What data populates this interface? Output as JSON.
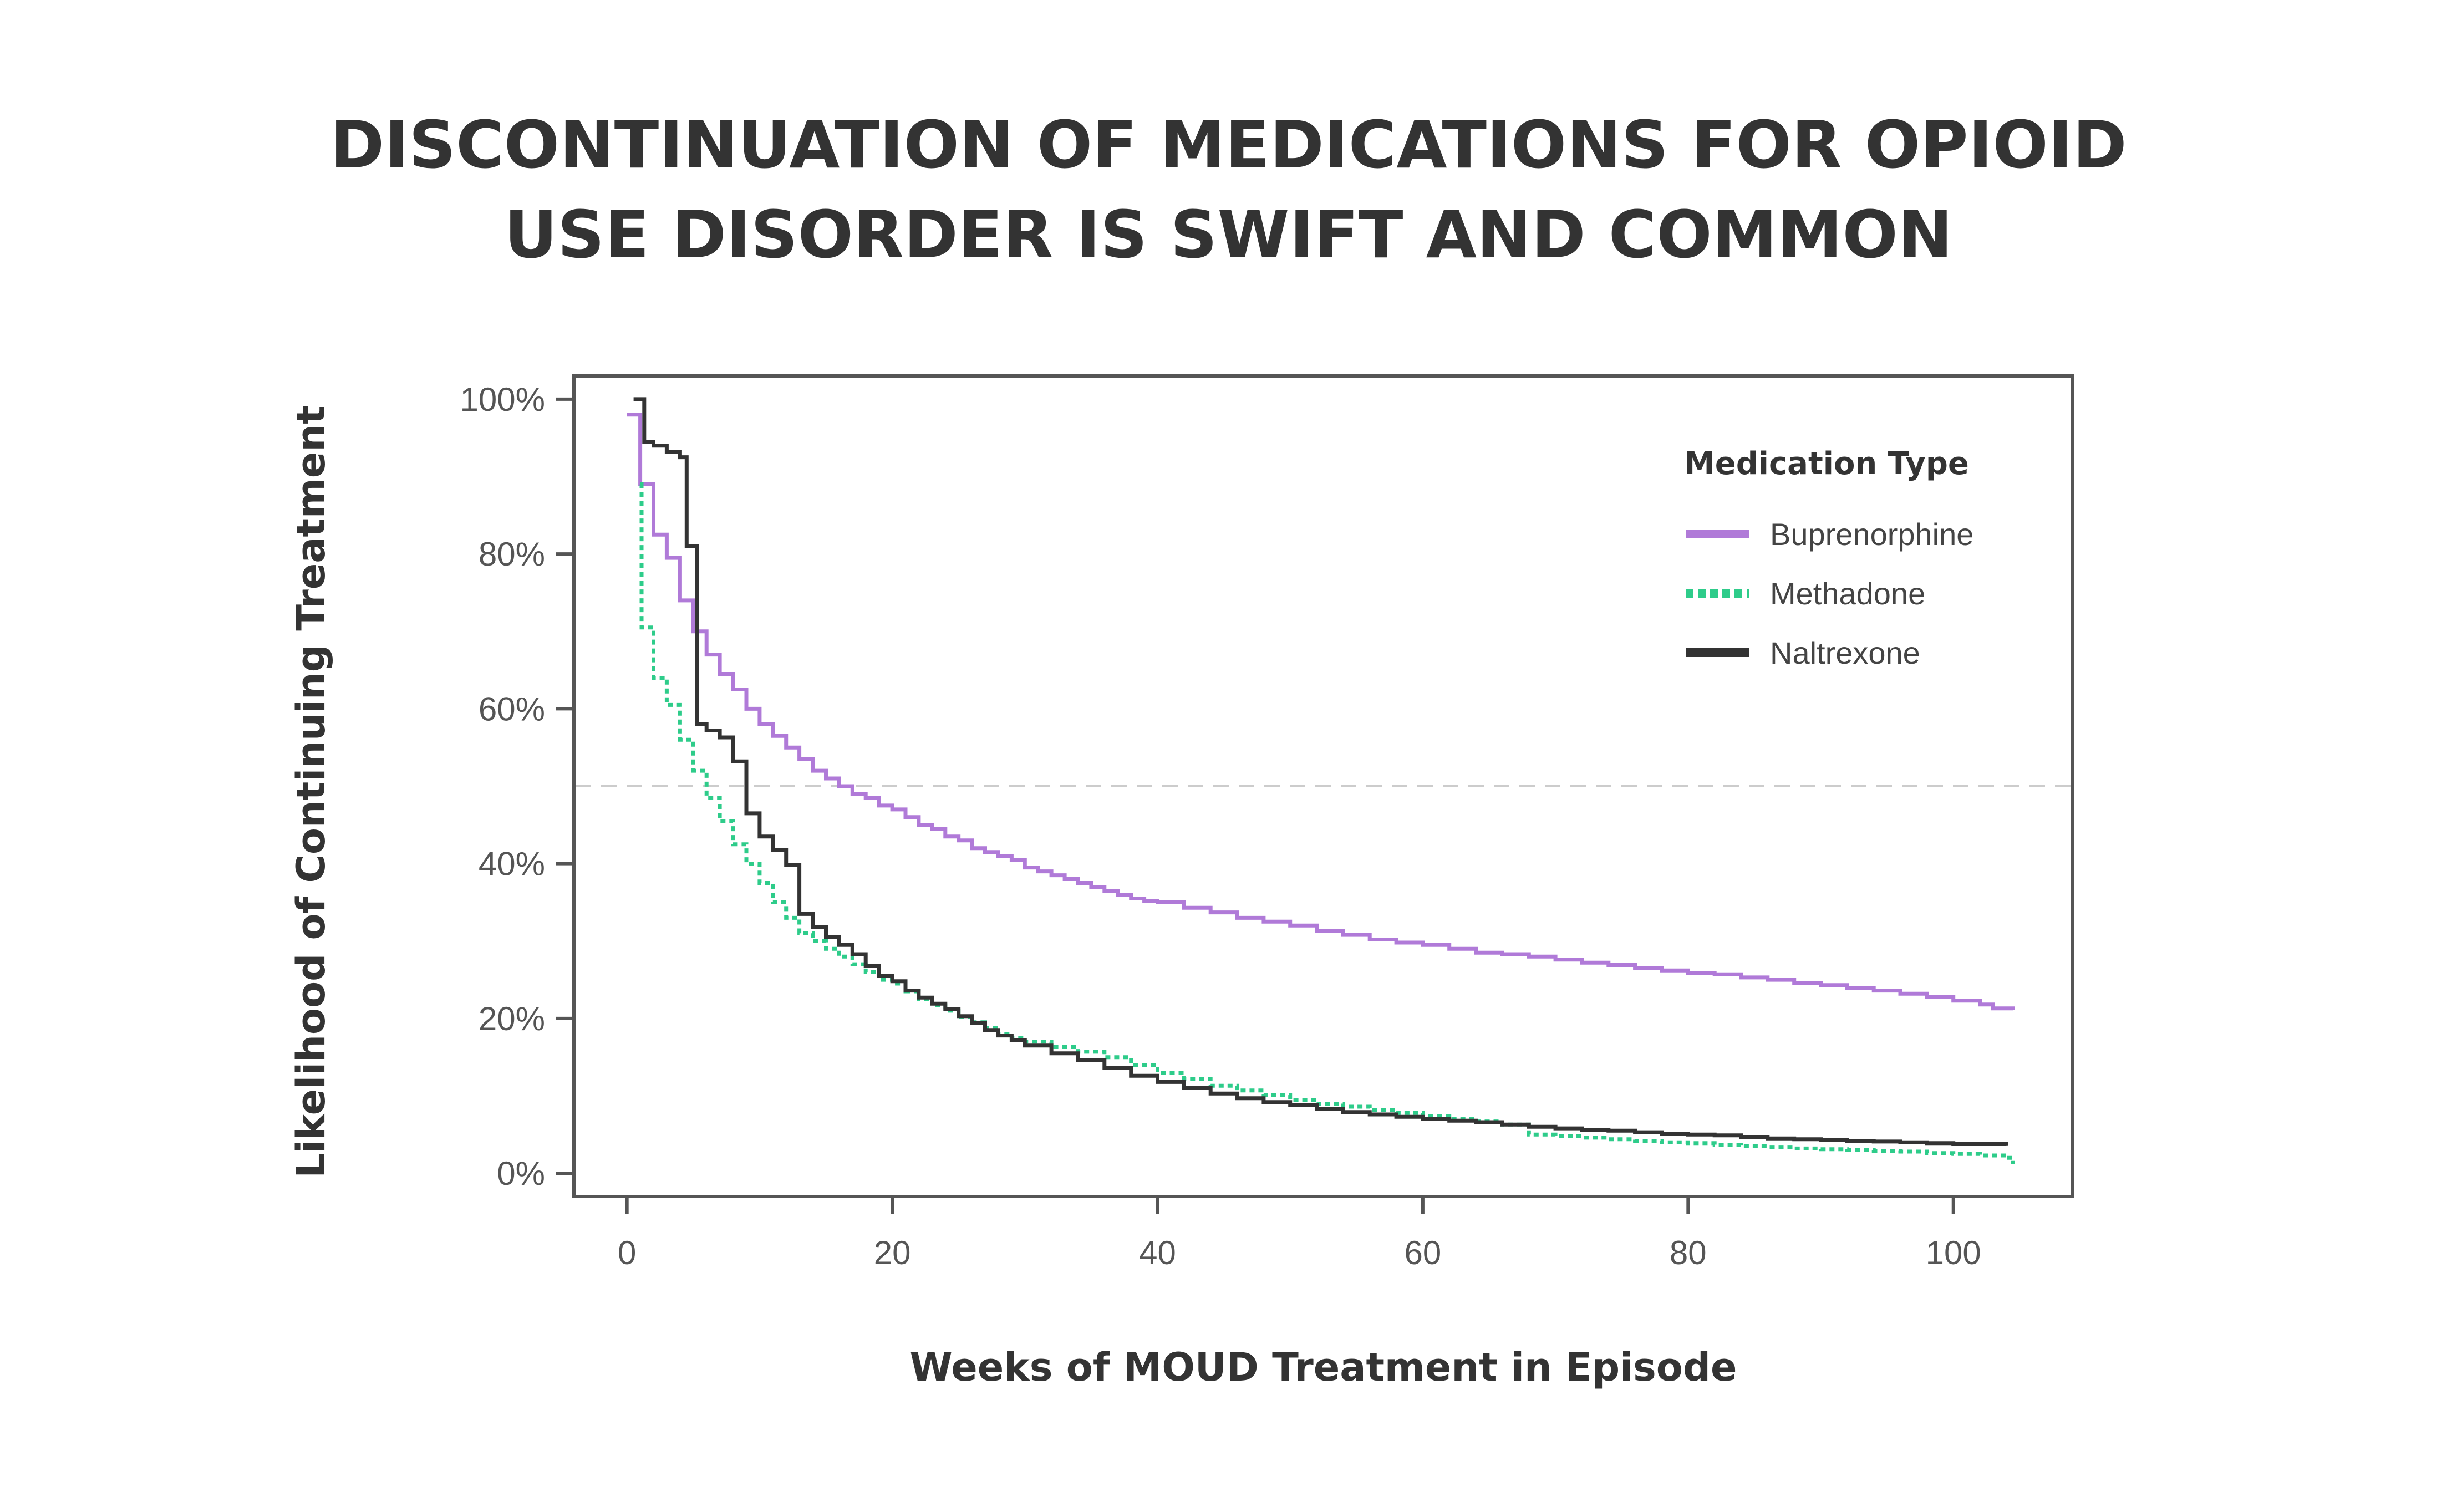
{
  "header": {
    "title_line1": "DISCONTINUATION OF MEDICATIONS FOR OPIOID",
    "title_line2": "USE DISORDER IS SWIFT AND COMMON"
  },
  "chart_data": {
    "type": "line",
    "step": true,
    "title": "DISCONTINUATION OF MEDICATIONS FOR OPIOID USE DISORDER IS SWIFT AND COMMON",
    "xlabel": "Weeks of MOUD Treatment in Episode",
    "ylabel": "Likelihood of Continuing Treatment",
    "xlim": [
      -4,
      109
    ],
    "ylim": [
      -3,
      103
    ],
    "x_ticks": [
      0,
      20,
      40,
      60,
      80,
      100
    ],
    "y_ticks": [
      0,
      20,
      40,
      60,
      80,
      100
    ],
    "y_tick_labels": [
      "0%",
      "20%",
      "40%",
      "60%",
      "80%",
      "100%"
    ],
    "reference_line": {
      "y": 50,
      "style": "dashed",
      "color": "#cccccc"
    },
    "grid": false,
    "legend": {
      "title": "Medication Type",
      "position": "top-right"
    },
    "series": [
      {
        "name": "Buprenorphine",
        "color": "#b07ad8",
        "dash": "solid",
        "points": [
          [
            0,
            98
          ],
          [
            1,
            89
          ],
          [
            2,
            82.5
          ],
          [
            3,
            79.5
          ],
          [
            4,
            74
          ],
          [
            5,
            70
          ],
          [
            6,
            67
          ],
          [
            7,
            64.5
          ],
          [
            8,
            62.5
          ],
          [
            9,
            60
          ],
          [
            10,
            58
          ],
          [
            11,
            56.5
          ],
          [
            12,
            55
          ],
          [
            13,
            53.5
          ],
          [
            14,
            52
          ],
          [
            15,
            51
          ],
          [
            16,
            50
          ],
          [
            17,
            49
          ],
          [
            18,
            48.5
          ],
          [
            19,
            47.5
          ],
          [
            20,
            47
          ],
          [
            21,
            46
          ],
          [
            22,
            45
          ],
          [
            23,
            44.5
          ],
          [
            24,
            43.5
          ],
          [
            25,
            43
          ],
          [
            26,
            42
          ],
          [
            27,
            41.5
          ],
          [
            28,
            41
          ],
          [
            29,
            40.5
          ],
          [
            30,
            39.5
          ],
          [
            31,
            39
          ],
          [
            32,
            38.5
          ],
          [
            33,
            38
          ],
          [
            34,
            37.5
          ],
          [
            35,
            37
          ],
          [
            36,
            36.5
          ],
          [
            37,
            36
          ],
          [
            38,
            35.5
          ],
          [
            39,
            35.2
          ],
          [
            40,
            35
          ],
          [
            42,
            34.3
          ],
          [
            44,
            33.7
          ],
          [
            46,
            33
          ],
          [
            48,
            32.5
          ],
          [
            50,
            32
          ],
          [
            52,
            31.3
          ],
          [
            54,
            30.8
          ],
          [
            56,
            30.2
          ],
          [
            58,
            29.8
          ],
          [
            60,
            29.5
          ],
          [
            62,
            29
          ],
          [
            64,
            28.5
          ],
          [
            66,
            28.3
          ],
          [
            68,
            28
          ],
          [
            70,
            27.6
          ],
          [
            72,
            27.2
          ],
          [
            74,
            26.9
          ],
          [
            76,
            26.5
          ],
          [
            78,
            26.2
          ],
          [
            80,
            25.9
          ],
          [
            82,
            25.7
          ],
          [
            84,
            25.3
          ],
          [
            86,
            25
          ],
          [
            88,
            24.6
          ],
          [
            90,
            24.3
          ],
          [
            92,
            23.9
          ],
          [
            94,
            23.6
          ],
          [
            96,
            23.2
          ],
          [
            98,
            22.8
          ],
          [
            100,
            22.3
          ],
          [
            102,
            21.8
          ],
          [
            103,
            21.3
          ],
          [
            104.5,
            21.1
          ]
        ]
      },
      {
        "name": "Methadone",
        "color": "#2ecc8a",
        "dash": "dotted",
        "points": [
          [
            1,
            89
          ],
          [
            1.1,
            70.5
          ],
          [
            2,
            64
          ],
          [
            3,
            60.5
          ],
          [
            4,
            56
          ],
          [
            5,
            52
          ],
          [
            6,
            48.5
          ],
          [
            7,
            45.5
          ],
          [
            8,
            42.5
          ],
          [
            9,
            40
          ],
          [
            10,
            37.5
          ],
          [
            11,
            35
          ],
          [
            12,
            33
          ],
          [
            13,
            31
          ],
          [
            14,
            30
          ],
          [
            15,
            29
          ],
          [
            16,
            28
          ],
          [
            17,
            27
          ],
          [
            18,
            26
          ],
          [
            19,
            25
          ],
          [
            20,
            24.5
          ],
          [
            21,
            23.5
          ],
          [
            22,
            22.5
          ],
          [
            23,
            21.7
          ],
          [
            24,
            21
          ],
          [
            25,
            20.2
          ],
          [
            26,
            19.5
          ],
          [
            27,
            18.8
          ],
          [
            28,
            18
          ],
          [
            29,
            17.5
          ],
          [
            30,
            17
          ],
          [
            32,
            16.3
          ],
          [
            34,
            15.7
          ],
          [
            36,
            15
          ],
          [
            38,
            14
          ],
          [
            40,
            13
          ],
          [
            42,
            12.2
          ],
          [
            44,
            11.3
          ],
          [
            46,
            10.7
          ],
          [
            48,
            10.1
          ],
          [
            50,
            9.5
          ],
          [
            52,
            9
          ],
          [
            54,
            8.6
          ],
          [
            56,
            8.2
          ],
          [
            58,
            7.8
          ],
          [
            60,
            7.4
          ],
          [
            62,
            7
          ],
          [
            64,
            6.7
          ],
          [
            66,
            6.3
          ],
          [
            68,
            5
          ],
          [
            70,
            4.8
          ],
          [
            72,
            4.6
          ],
          [
            74,
            4.4
          ],
          [
            76,
            4.2
          ],
          [
            78,
            4
          ],
          [
            80,
            3.9
          ],
          [
            82,
            3.7
          ],
          [
            84,
            3.5
          ],
          [
            86,
            3.4
          ],
          [
            88,
            3.2
          ],
          [
            90,
            3.1
          ],
          [
            92,
            3
          ],
          [
            94,
            2.9
          ],
          [
            96,
            2.8
          ],
          [
            98,
            2.6
          ],
          [
            100,
            2.5
          ],
          [
            102,
            2.3
          ],
          [
            104,
            2
          ],
          [
            104.5,
            1.2
          ]
        ]
      },
      {
        "name": "Naltrexone",
        "color": "#333333",
        "dash": "solid",
        "points": [
          [
            0.5,
            100
          ],
          [
            1.3,
            94.5
          ],
          [
            2,
            94
          ],
          [
            3,
            93.2
          ],
          [
            4,
            92.5
          ],
          [
            4.5,
            81
          ],
          [
            5.3,
            58
          ],
          [
            6,
            57.2
          ],
          [
            7,
            56.3
          ],
          [
            8,
            53.2
          ],
          [
            9,
            46.5
          ],
          [
            10,
            43.5
          ],
          [
            11,
            41.8
          ],
          [
            12,
            39.8
          ],
          [
            13,
            33.5
          ],
          [
            14,
            31.8
          ],
          [
            15,
            30.5
          ],
          [
            16,
            29.5
          ],
          [
            17,
            28.3
          ],
          [
            18,
            26.8
          ],
          [
            19,
            25.5
          ],
          [
            20,
            24.8
          ],
          [
            21,
            23.6
          ],
          [
            22,
            22.7
          ],
          [
            23,
            21.9
          ],
          [
            24,
            21.2
          ],
          [
            25,
            20.3
          ],
          [
            26,
            19.4
          ],
          [
            27,
            18.5
          ],
          [
            28,
            17.8
          ],
          [
            29,
            17.2
          ],
          [
            30,
            16.5
          ],
          [
            32,
            15.5
          ],
          [
            34,
            14.6
          ],
          [
            36,
            13.6
          ],
          [
            38,
            12.6
          ],
          [
            40,
            11.8
          ],
          [
            42,
            11
          ],
          [
            44,
            10.3
          ],
          [
            46,
            9.7
          ],
          [
            48,
            9.2
          ],
          [
            50,
            8.8
          ],
          [
            52,
            8.3
          ],
          [
            54,
            7.9
          ],
          [
            56,
            7.6
          ],
          [
            58,
            7.3
          ],
          [
            60,
            7
          ],
          [
            62,
            6.8
          ],
          [
            64,
            6.6
          ],
          [
            66,
            6.3
          ],
          [
            68,
            6
          ],
          [
            70,
            5.8
          ],
          [
            72,
            5.6
          ],
          [
            74,
            5.5
          ],
          [
            76,
            5.3
          ],
          [
            78,
            5.1
          ],
          [
            80,
            5
          ],
          [
            82,
            4.9
          ],
          [
            84,
            4.7
          ],
          [
            86,
            4.5
          ],
          [
            88,
            4.4
          ],
          [
            90,
            4.3
          ],
          [
            92,
            4.2
          ],
          [
            94,
            4.1
          ],
          [
            96,
            4
          ],
          [
            98,
            3.9
          ],
          [
            100,
            3.8
          ],
          [
            102,
            3.8
          ],
          [
            104,
            3.6
          ]
        ]
      }
    ]
  }
}
